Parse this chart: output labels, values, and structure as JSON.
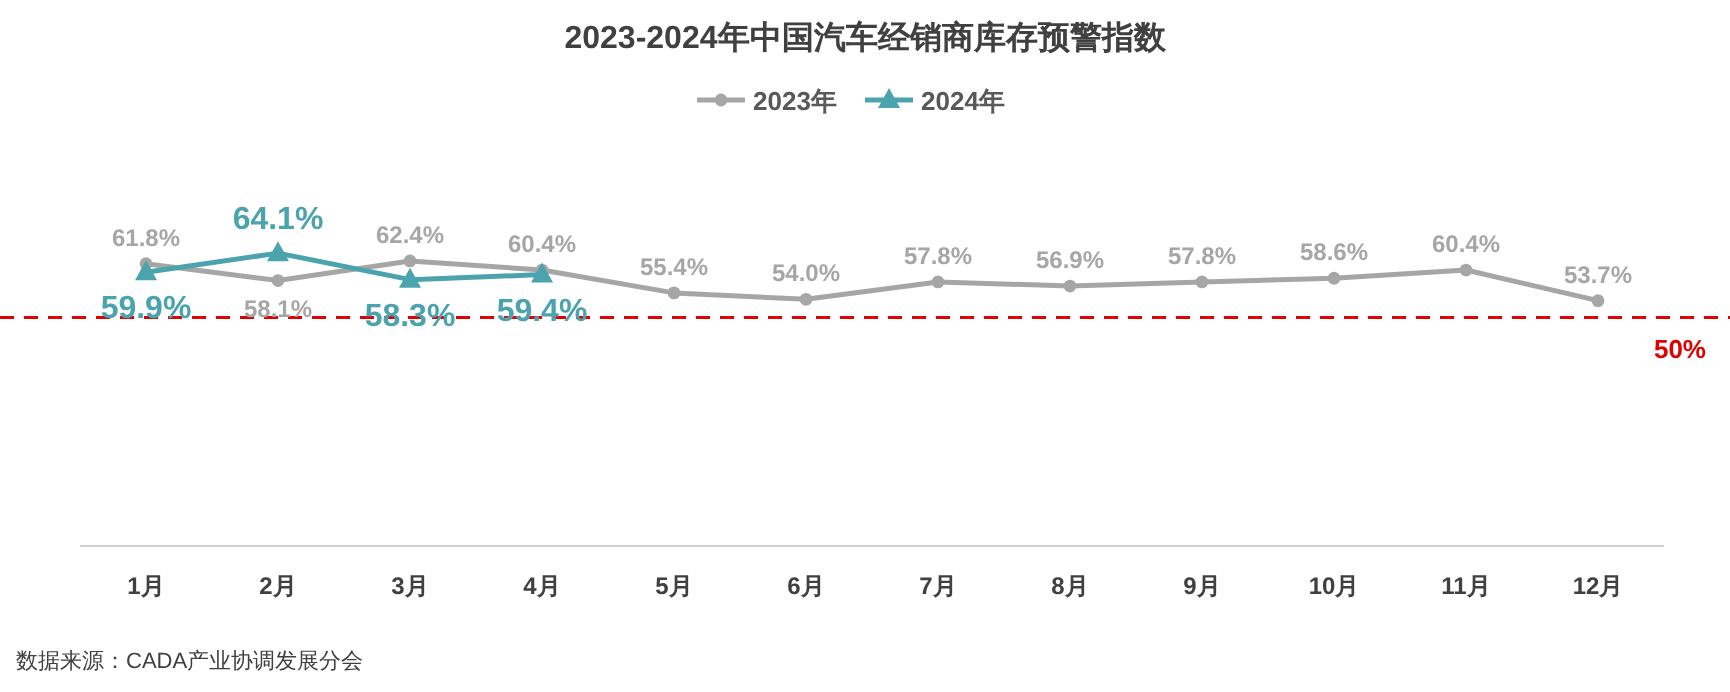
{
  "chart_data": {
    "type": "line",
    "title": "2023-2024年中国汽车经销商库存预警指数",
    "categories": [
      "1月",
      "2月",
      "3月",
      "4月",
      "5月",
      "6月",
      "7月",
      "8月",
      "9月",
      "10月",
      "11月",
      "12月"
    ],
    "series": [
      {
        "name": "2023年",
        "color": "#a6a6a6",
        "marker": "circle",
        "values": [
          61.8,
          58.1,
          62.4,
          60.4,
          55.4,
          54.0,
          57.8,
          56.9,
          57.8,
          58.6,
          60.4,
          53.7
        ],
        "value_labels": [
          "61.8%",
          "58.1%",
          "62.4%",
          "60.4%",
          "55.4%",
          "54.0%",
          "57.8%",
          "56.9%",
          "57.8%",
          "58.6%",
          "60.4%",
          "53.7%"
        ]
      },
      {
        "name": "2024年",
        "color": "#4ba3ae",
        "marker": "triangle",
        "values": [
          59.9,
          64.1,
          58.3,
          59.4,
          null,
          null,
          null,
          null,
          null,
          null,
          null,
          null
        ],
        "value_labels": [
          "59.9%",
          "64.1%",
          "58.3%",
          "59.4%",
          null,
          null,
          null,
          null,
          null,
          null,
          null,
          null
        ]
      }
    ],
    "tick_labels": "x",
    "legend": "top",
    "line_style": "solid",
    "ref_lines": [
      {
        "axis": "y",
        "value": 50,
        "label": "50%",
        "color": "#e00000",
        "line_style": "dashed"
      }
    ],
    "annotations": [
      "数据来源：CADA产业协调发展分会"
    ]
  }
}
